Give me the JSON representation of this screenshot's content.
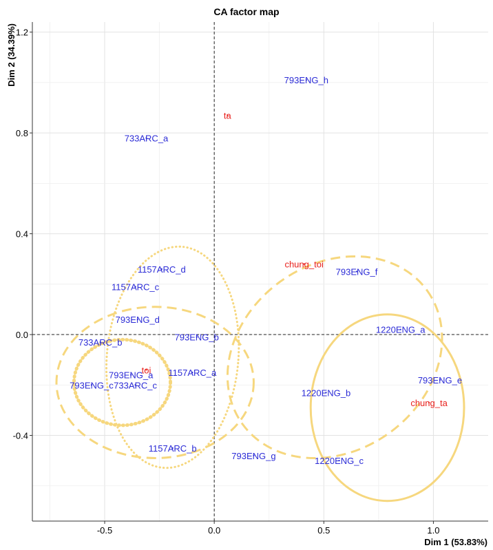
{
  "chart_data": {
    "type": "scatter",
    "title": "CA factor map",
    "xlabel": "Dim 1 (53.83%)",
    "ylabel": "Dim 2 (34.39%)",
    "xlim": [
      -0.83,
      1.25
    ],
    "ylim": [
      -0.74,
      1.24
    ],
    "xticks": [
      -0.5,
      0.0,
      0.5,
      1.0
    ],
    "xtick_labels": [
      "-0.5",
      "0.0",
      "0.5",
      "1.0"
    ],
    "yticks": [
      -0.4,
      0.0,
      0.4,
      0.8,
      1.2
    ],
    "ytick_labels": [
      "-0.4",
      "0.0",
      "0.4",
      "0.8",
      "1.2"
    ],
    "grid": true,
    "reference_lines": {
      "x": 0,
      "y": 0,
      "style": "dashed"
    },
    "series": [
      {
        "color": "#2b2bd6",
        "points": [
          {
            "label": "793ENG_h",
            "x": 0.42,
            "y": 1.01
          },
          {
            "label": "733ARC_a",
            "x": -0.31,
            "y": 0.78
          },
          {
            "label": "793ENG_f",
            "x": 0.65,
            "y": 0.25
          },
          {
            "label": "1157ARC_d",
            "x": -0.24,
            "y": 0.26
          },
          {
            "label": "1157ARC_c",
            "x": -0.36,
            "y": 0.19
          },
          {
            "label": "793ENG_d",
            "x": -0.35,
            "y": 0.06
          },
          {
            "label": "1220ENG_a",
            "x": 0.85,
            "y": 0.02
          },
          {
            "label": "733ARC_b",
            "x": -0.52,
            "y": -0.03
          },
          {
            "label": "793ENG_b",
            "x": -0.08,
            "y": -0.01
          },
          {
            "label": "1157ARC_a",
            "x": -0.1,
            "y": -0.15
          },
          {
            "label": "793ENG_a",
            "x": -0.38,
            "y": -0.16
          },
          {
            "label": "793ENG_c",
            "x": -0.56,
            "y": -0.2
          },
          {
            "label": "733ARC_c",
            "x": -0.36,
            "y": -0.2
          },
          {
            "label": "1220ENG_b",
            "x": 0.51,
            "y": -0.23
          },
          {
            "label": "793ENG_e",
            "x": 1.03,
            "y": -0.18
          },
          {
            "label": "1157ARC_b",
            "x": -0.19,
            "y": -0.45
          },
          {
            "label": "793ENG_g",
            "x": 0.18,
            "y": -0.48
          },
          {
            "label": "1220ENG_c",
            "x": 0.57,
            "y": -0.5
          }
        ]
      },
      {
        "color": "#e8201c",
        "points": [
          {
            "label": "ta",
            "x": 0.06,
            "y": 0.87
          },
          {
            "label": "chung_toi",
            "x": 0.41,
            "y": 0.28
          },
          {
            "label": "toi",
            "x": -0.31,
            "y": -0.14
          },
          {
            "label": "chung_ta",
            "x": 0.98,
            "y": -0.27
          }
        ]
      }
    ],
    "ellipses": [
      {
        "style": "dotted-thick",
        "cx": -0.42,
        "cy": -0.19,
        "rx": 0.22,
        "ry": 0.17,
        "angle": 0
      },
      {
        "style": "dotted",
        "cx": -0.19,
        "cy": -0.09,
        "rx": 0.3,
        "ry": 0.44,
        "angle": 5
      },
      {
        "style": "dashed",
        "cx": -0.27,
        "cy": -0.19,
        "rx": 0.45,
        "ry": 0.3,
        "angle": 0
      },
      {
        "style": "dashed",
        "cx": 0.55,
        "cy": -0.09,
        "rx": 0.52,
        "ry": 0.37,
        "angle": -36
      },
      {
        "style": "solid",
        "cx": 0.79,
        "cy": -0.29,
        "rx": 0.35,
        "ry": 0.37,
        "angle": 0
      }
    ],
    "ellipse_color": "#f6d77e"
  }
}
